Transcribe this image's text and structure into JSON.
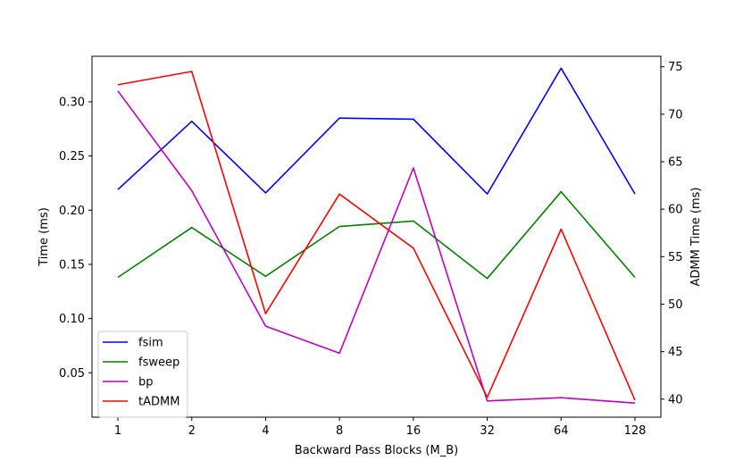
{
  "chart_data": {
    "type": "line",
    "x_label": "Backward Pass Blocks (M_B)",
    "y_label_left": "Time (ms)",
    "y_label_right": "ADMM Time (ms)",
    "categories": [
      "1",
      "2",
      "4",
      "8",
      "16",
      "32",
      "64",
      "128"
    ],
    "y_left_range": [
      0.009,
      0.342
    ],
    "y_left_ticks": [
      0.05,
      0.1,
      0.15,
      0.2,
      0.25,
      0.3
    ],
    "y_right_range": [
      38.1,
      76.1
    ],
    "y_right_ticks": [
      40,
      45,
      50,
      55,
      60,
      65,
      70,
      75
    ],
    "grid": false,
    "legend_position": "lower-left",
    "series": [
      {
        "name": "fsim",
        "axis": "left",
        "color": "#0000ff",
        "values": [
          0.219,
          0.282,
          0.216,
          0.285,
          0.284,
          0.215,
          0.331,
          0.215
        ]
      },
      {
        "name": "fsweep",
        "axis": "left",
        "color": "#008000",
        "values": [
          0.138,
          0.184,
          0.139,
          0.185,
          0.19,
          0.137,
          0.217,
          0.138
        ]
      },
      {
        "name": "bp",
        "axis": "left",
        "color": "#bf00bf",
        "values": [
          0.31,
          0.218,
          0.093,
          0.068,
          0.239,
          0.024,
          0.027,
          0.022
        ]
      },
      {
        "name": "tADMM",
        "axis": "right",
        "color": "#ff0000",
        "values": [
          73.1,
          74.5,
          49.0,
          61.6,
          55.9,
          40.2,
          57.9,
          39.9
        ]
      }
    ]
  }
}
